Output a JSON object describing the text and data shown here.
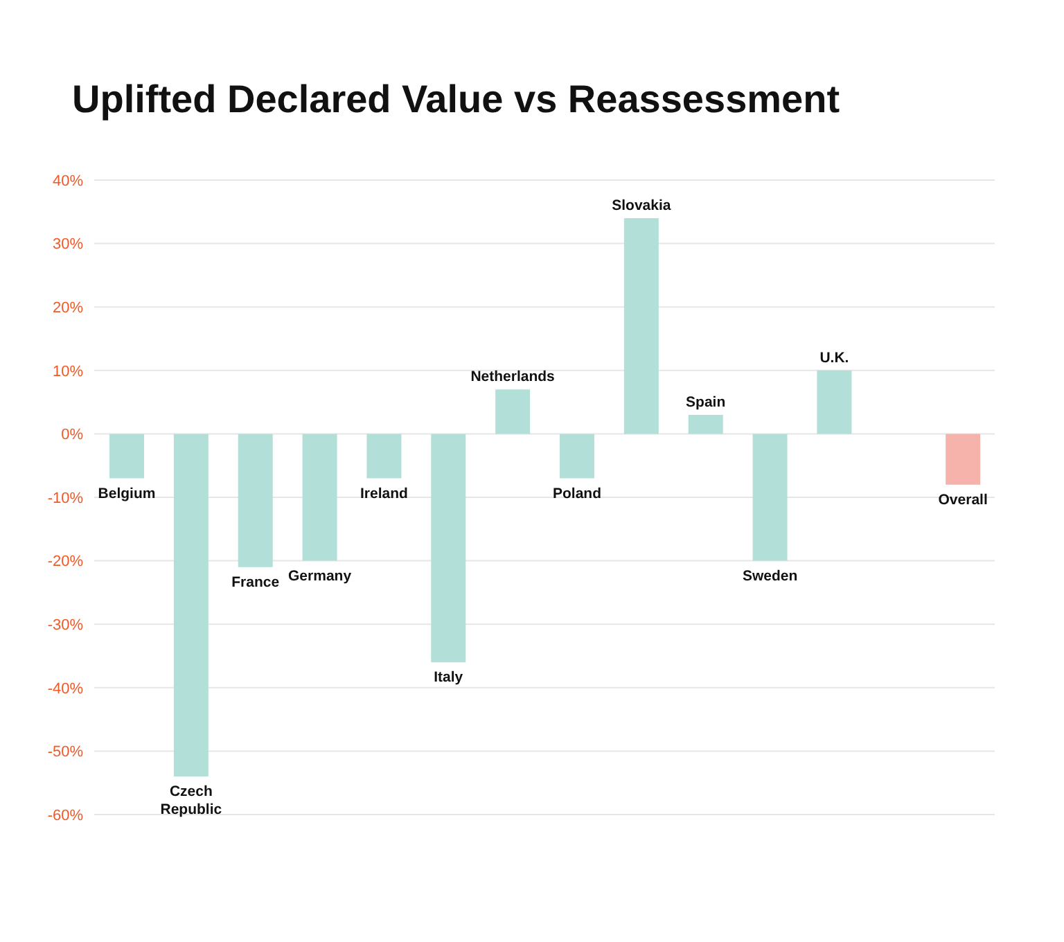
{
  "chart_data": {
    "type": "bar",
    "title": "Uplifted Declared Value vs Reassessment",
    "categories": [
      "Belgium",
      "Czech Republic",
      "France",
      "Germany",
      "Ireland",
      "Italy",
      "Netherlands",
      "Poland",
      "Slovakia",
      "Spain",
      "Sweden",
      "U.K.",
      null,
      "Overall"
    ],
    "values": [
      -7,
      -54,
      -21,
      -20,
      -7,
      -36,
      7,
      -7,
      34,
      3,
      -20,
      10,
      null,
      -8
    ],
    "colors": [
      "#b2dfd8",
      "#b2dfd8",
      "#b2dfd8",
      "#b2dfd8",
      "#b2dfd8",
      "#b2dfd8",
      "#b2dfd8",
      "#b2dfd8",
      "#b2dfd8",
      "#b2dfd8",
      "#b2dfd8",
      "#b2dfd8",
      "#b2dfd8",
      "#f5b3ab"
    ],
    "ylim": [
      -60,
      40
    ],
    "yticks": [
      {
        "value": -60,
        "label": "-60%"
      },
      {
        "value": -50,
        "label": "-50%"
      },
      {
        "value": -40,
        "label": "-40%"
      },
      {
        "value": -30,
        "label": "-30%"
      },
      {
        "value": -20,
        "label": "-20%"
      },
      {
        "value": -10,
        "label": "-10%"
      },
      {
        "value": 0,
        "label": "0%"
      },
      {
        "value": 10,
        "label": "10%"
      },
      {
        "value": 20,
        "label": "20%"
      },
      {
        "value": 30,
        "label": "30%"
      },
      {
        "value": 40,
        "label": "40%"
      }
    ],
    "grid": "y",
    "tick_labels": "y"
  }
}
